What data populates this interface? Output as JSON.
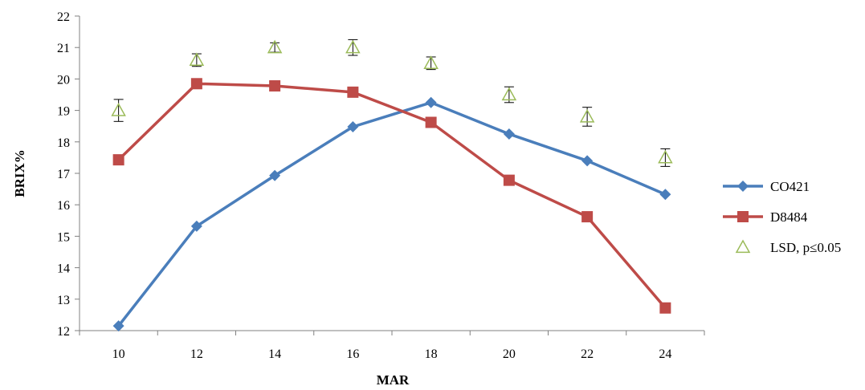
{
  "chart_data": {
    "type": "line",
    "title": "",
    "xlabel": "MAR",
    "ylabel": "BRIX%",
    "x": [
      10,
      12,
      14,
      16,
      18,
      20,
      22,
      24
    ],
    "x_tick_labels": [
      "10",
      "12",
      "14",
      "16",
      "18",
      "20",
      "22",
      "24"
    ],
    "ylim": [
      12,
      22
    ],
    "y_tick_labels": [
      "12",
      "13",
      "14",
      "15",
      "16",
      "17",
      "18",
      "19",
      "20",
      "21",
      "22"
    ],
    "grid": false,
    "legend_position": "right",
    "series": [
      {
        "name": "CO421",
        "color": "#4a7ebb",
        "marker": "diamond",
        "values": [
          12.15,
          15.32,
          16.93,
          18.48,
          19.25,
          18.25,
          17.4,
          16.33
        ]
      },
      {
        "name": "D8484",
        "color": "#be4b48",
        "marker": "square",
        "values": [
          17.43,
          19.85,
          19.78,
          19.58,
          18.62,
          16.78,
          15.62,
          12.72
        ]
      },
      {
        "name": "LSD, p≤0.05",
        "color": "#9bbb59",
        "marker": "triangle-open",
        "values": [
          19.0,
          20.6,
          21.0,
          21.0,
          20.5,
          19.5,
          18.8,
          17.5
        ],
        "error": [
          0.35,
          0.2,
          0.15,
          0.25,
          0.2,
          0.25,
          0.3,
          0.28
        ]
      }
    ]
  }
}
